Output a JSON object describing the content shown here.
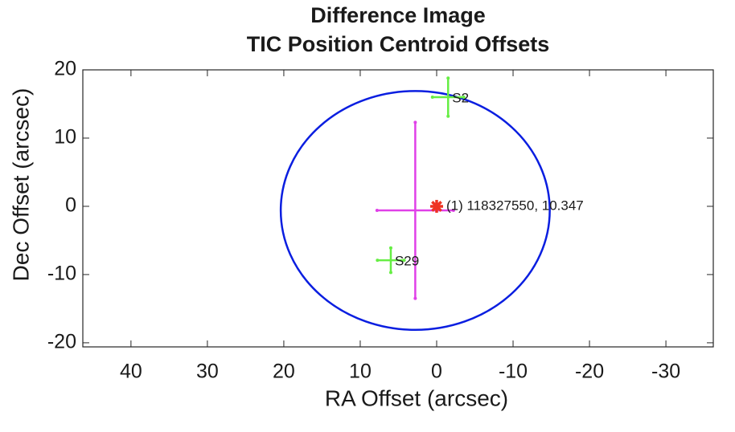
{
  "chart_data": {
    "type": "scatter",
    "title": [
      "Difference Image",
      "TIC Position Centroid Offsets"
    ],
    "x_label": "RA Offset (arcsec)",
    "y_label": "Dec Offset (arcsec)",
    "xlim": [
      46.3,
      -36.2
    ],
    "ylim": [
      -20.6,
      20
    ],
    "xticks": [
      40,
      30,
      20,
      10,
      0,
      -10,
      -20,
      -30
    ],
    "yticks": [
      20,
      10,
      0,
      -10,
      -20
    ],
    "circle": {
      "x": 2.8,
      "y": -0.6,
      "rx": 17.6,
      "ry": 17.5,
      "color": "#0a1ee0"
    },
    "centroid": {
      "x": 2.8,
      "y": -0.6,
      "xerr": 5.0,
      "yerr": 12.9,
      "color": "#e040e8"
    },
    "sources": [
      {
        "name": "S2",
        "x": -1.5,
        "y": 16.0,
        "xerr": 2.05,
        "yerr": 2.8,
        "color": "#66ee44"
      },
      {
        "name": "S29",
        "x": 6.0,
        "y": -7.9,
        "xerr": 1.75,
        "yerr": 1.8,
        "color": "#66ee44"
      }
    ],
    "target": {
      "name": "(1) 118327550, 10.347",
      "x": 0,
      "y": 0,
      "color": "#ee3322"
    }
  }
}
